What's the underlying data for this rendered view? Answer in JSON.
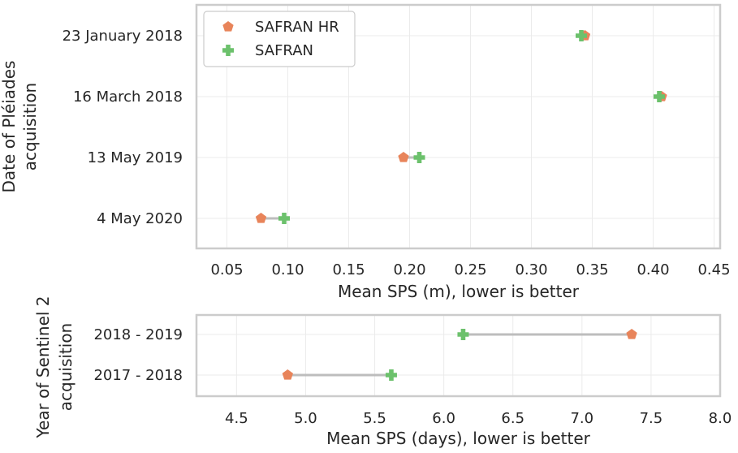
{
  "chart_data": [
    {
      "type": "dot-range",
      "ylabel_lines": [
        "Date of Pléiades",
        "acquisition"
      ],
      "xlabel": "Mean SPS (m), lower is better",
      "xlim": [
        0.025,
        0.455
      ],
      "xticks": [
        "0.05",
        "0.10",
        "0.15",
        "0.20",
        "0.25",
        "0.30",
        "0.35",
        "0.40",
        "0.45"
      ],
      "xtick_values": [
        0.05,
        0.1,
        0.15,
        0.2,
        0.25,
        0.3,
        0.35,
        0.4,
        0.45
      ],
      "categories": [
        "23 January 2018",
        "16 March 2018",
        "13 May 2019",
        "4 May 2020"
      ],
      "series": [
        {
          "name": "SAFRAN HR",
          "marker": "pentagon",
          "color": "#e8845a",
          "values": [
            0.344,
            0.407,
            0.195,
            0.078
          ]
        },
        {
          "name": "SAFRAN",
          "marker": "plus",
          "color": "#6cc16c",
          "values": [
            0.341,
            0.405,
            0.208,
            0.097
          ]
        }
      ],
      "legend": {
        "position": "top-left",
        "entries": [
          "SAFRAN HR",
          "SAFRAN"
        ]
      }
    },
    {
      "type": "dot-range",
      "ylabel_lines": [
        "Year of Sentinel 2",
        "acquisition"
      ],
      "xlabel": "Mean SPS (days), lower is better",
      "xlim": [
        4.21,
        8.0
      ],
      "xticks": [
        "4.5",
        "5.0",
        "5.5",
        "6.0",
        "6.5",
        "7.0",
        "7.5",
        "8.0"
      ],
      "xtick_values": [
        4.5,
        5.0,
        5.5,
        6.0,
        6.5,
        7.0,
        7.5,
        8.0
      ],
      "categories": [
        "2018 - 2019",
        "2017 - 2018"
      ],
      "series": [
        {
          "name": "SAFRAN HR",
          "marker": "pentagon",
          "color": "#e8845a",
          "values": [
            7.36,
            4.87
          ]
        },
        {
          "name": "SAFRAN",
          "marker": "plus",
          "color": "#6cc16c",
          "values": [
            6.14,
            5.62
          ]
        }
      ]
    }
  ]
}
